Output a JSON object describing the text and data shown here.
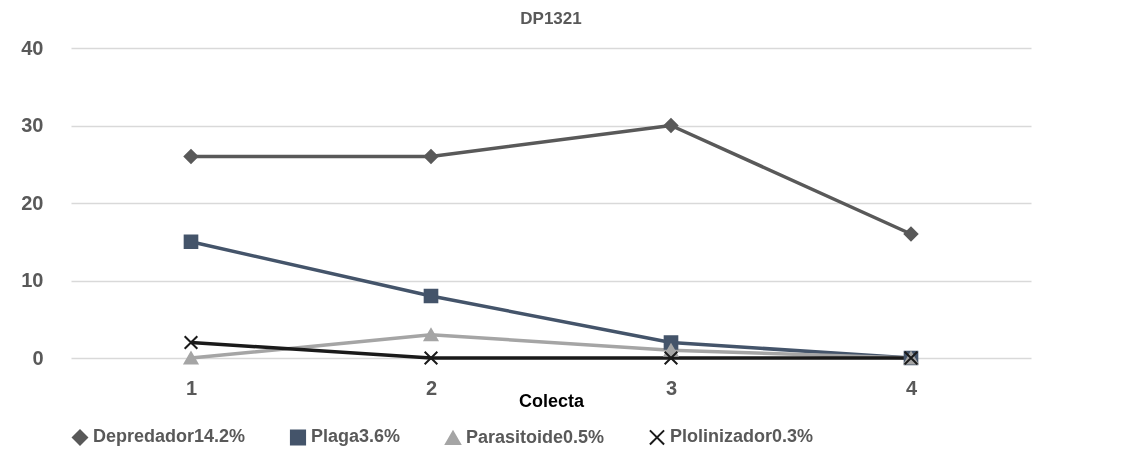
{
  "chart_data": {
    "type": "line",
    "title": "DP1321",
    "xlabel": "Colecta",
    "categories": [
      "1",
      "2",
      "3",
      "4"
    ],
    "series": [
      {
        "name": "Depredador14.2%",
        "color": "#595959",
        "marker": "diamond",
        "values": [
          26,
          26,
          30,
          16
        ]
      },
      {
        "name": "Plaga3.6%",
        "color": "#44546a",
        "marker": "square",
        "values": [
          15,
          8,
          2,
          0
        ]
      },
      {
        "name": "Parasitoide0.5%",
        "color": "#a5a5a5",
        "marker": "triangle",
        "values": [
          0,
          3,
          1,
          0
        ]
      },
      {
        "name": "Plolinizador0.3%",
        "color": "#1a1a1a",
        "marker": "cross",
        "values": [
          2,
          0,
          0,
          0
        ]
      }
    ],
    "ylim": [
      0,
      40
    ],
    "yticks": [
      0,
      10,
      20,
      30,
      40
    ],
    "grid": "y",
    "legend": "bottom"
  }
}
